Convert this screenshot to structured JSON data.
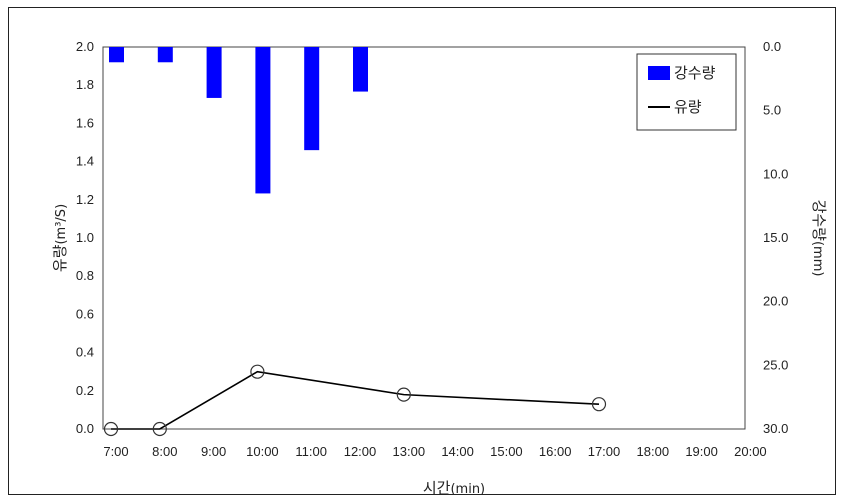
{
  "chart_data": {
    "type": "bar+line",
    "x_categories": [
      "7:00",
      "8:00",
      "9:00",
      "10:00",
      "11:00",
      "12:00",
      "13:00",
      "14:00",
      "15:00",
      "16:00",
      "17:00",
      "18:00",
      "19:00",
      "20:00"
    ],
    "xlabel_main": "시간",
    "xlabel_unit": "(min)",
    "ylabel_left_main": "유량",
    "ylabel_left_unit": "(m³/S)",
    "ylabel_right_main": "강수량",
    "ylabel_right_unit": "(mm)",
    "y_left_ticks": [
      "0.0",
      "0.2",
      "0.4",
      "0.6",
      "0.8",
      "1.0",
      "1.2",
      "1.4",
      "1.6",
      "1.8",
      "2.0"
    ],
    "y_right_ticks": [
      "0.0",
      "5.0",
      "10.0",
      "15.0",
      "20.0",
      "25.0",
      "30.0"
    ],
    "y_left_range": [
      0,
      2.0
    ],
    "y_right_range": [
      0,
      30.0
    ],
    "y_right_inverted": true,
    "series": [
      {
        "name": "강수량",
        "type": "bar",
        "axis": "right",
        "color": "#0000ff",
        "x": [
          "7:00",
          "8:00",
          "9:00",
          "10:00",
          "11:00",
          "12:00"
        ],
        "values": [
          1.2,
          1.2,
          4.0,
          11.5,
          8.1,
          3.5
        ]
      },
      {
        "name": "유량",
        "type": "line",
        "axis": "left",
        "color": "#000000",
        "x": [
          "7:00",
          "8:00",
          "10:00",
          "13:00",
          "17:00"
        ],
        "values": [
          0.0,
          0.0,
          0.3,
          0.18,
          0.13
        ]
      }
    ],
    "legend_position": "top-right",
    "grid": false
  }
}
